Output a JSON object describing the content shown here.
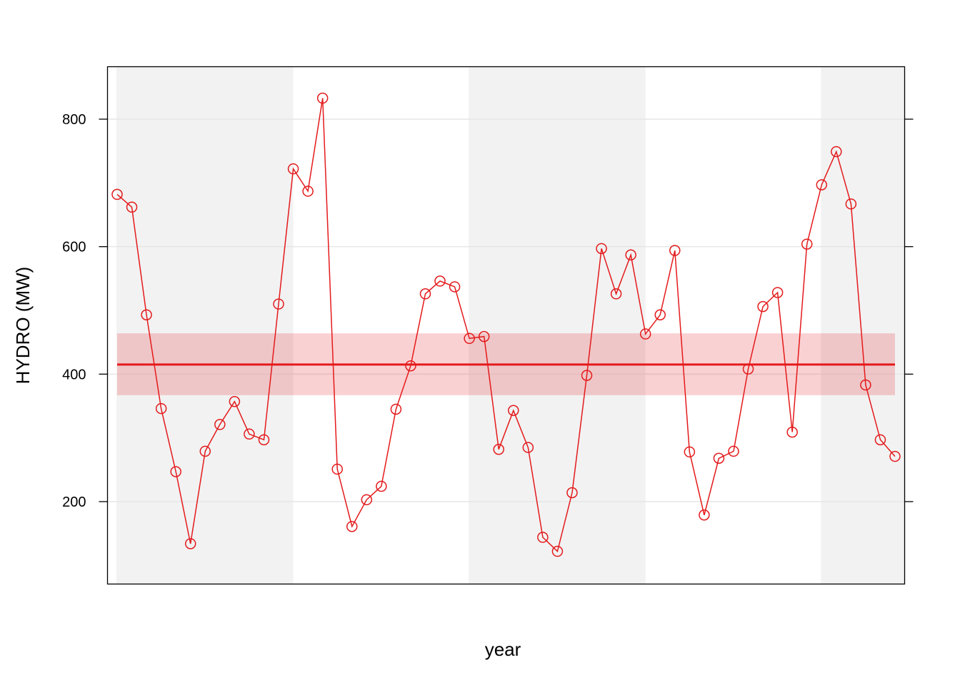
{
  "chart_data": {
    "type": "line",
    "title": "",
    "xlabel": "year",
    "ylabel": "HYDRO (MW)",
    "ylim": [
      85,
      895
    ],
    "y_ticks": [
      200,
      400,
      600,
      800
    ],
    "x_tick_labels_visible": false,
    "grid": "horizontal",
    "legend": "none",
    "series": [
      {
        "color": "#e41a1c",
        "marker": "open-circle",
        "values": [
          682,
          662,
          493,
          346,
          247,
          134,
          279,
          321,
          357,
          306,
          297,
          510,
          722,
          687,
          833,
          251,
          161,
          203,
          224,
          345,
          413,
          526,
          546,
          537,
          456,
          459,
          282,
          343,
          285,
          144,
          122,
          214,
          398,
          597,
          526,
          587,
          463,
          493,
          594,
          278,
          179,
          268,
          279,
          408,
          506,
          528,
          309,
          604,
          697,
          749,
          667,
          383,
          297,
          271
        ]
      }
    ],
    "mean_line": {
      "value": 415,
      "color": "#e41a1c"
    },
    "mean_band": {
      "lower": 367,
      "upper": 464,
      "color": "#e41a1c",
      "opacity": 0.2
    },
    "shaded_periods": [
      {
        "from_index": 0,
        "to_index": 12
      },
      {
        "from_index": 24,
        "to_index": 36
      },
      {
        "from_index": 48,
        "to_index": 53
      }
    ],
    "shade_color": "#f2f2f2"
  }
}
